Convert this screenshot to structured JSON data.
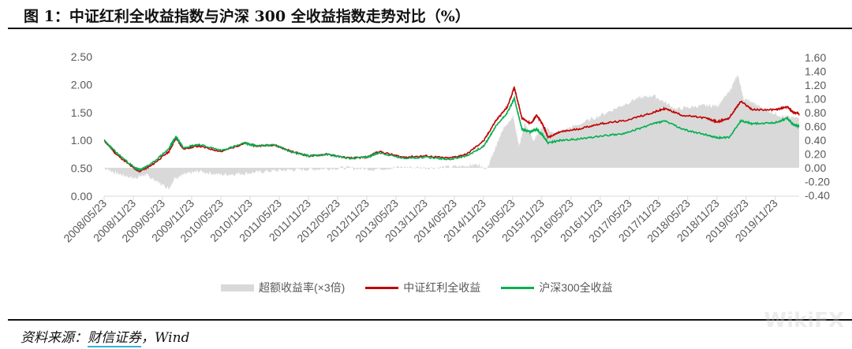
{
  "title": "图 1：中证红利全收益指数与沪深 300 全收益指数走势对比（%）",
  "source": {
    "prefix": "资料来源：",
    "link": "财信证券",
    "suffix": "，Wind"
  },
  "watermark": "WikiFX",
  "chart_data": {
    "type": "line",
    "title": "中证红利全收益指数与沪深 300 全收益指数走势对比（%）",
    "x_ticks": [
      "2008/05/23",
      "2008/11/23",
      "2009/05/23",
      "2009/11/23",
      "2010/05/23",
      "2010/11/23",
      "2011/05/23",
      "2011/11/23",
      "2012/05/23",
      "2012/11/23",
      "2013/05/23",
      "2013/11/23",
      "2014/05/23",
      "2014/11/23",
      "2015/05/23",
      "2015/11/23",
      "2016/05/23",
      "2016/11/23",
      "2017/05/23",
      "2017/11/23",
      "2018/05/23",
      "2018/11/23",
      "2019/05/23",
      "2019/11/23"
    ],
    "xlim": [
      2008.39,
      2020.3
    ],
    "y_left": {
      "ticks": [
        "0.00",
        "0.50",
        "1.00",
        "1.50",
        "2.00",
        "2.50"
      ],
      "range": [
        0,
        2.5
      ]
    },
    "y_right": {
      "ticks": [
        "-0.40",
        "-0.20",
        "0.00",
        "0.20",
        "0.40",
        "0.60",
        "0.80",
        "1.00",
        "1.20",
        "1.40",
        "1.60"
      ],
      "range": [
        -0.4,
        1.6
      ]
    },
    "legend_position": "bottom",
    "colors": {
      "excess": "#d9d9d9",
      "dividend": "#c00000",
      "csi300": "#00b050"
    },
    "series": [
      {
        "name": "超额收益率(×3倍)",
        "type": "area",
        "axis": "right",
        "x": [
          2008.39,
          2008.6,
          2008.9,
          2009.1,
          2009.3,
          2009.5,
          2009.6,
          2009.75,
          2010.0,
          2010.4,
          2010.8,
          2011.2,
          2011.6,
          2012.0,
          2012.5,
          2013.0,
          2013.5,
          2014.0,
          2014.5,
          2014.8,
          2014.95,
          2015.1,
          2015.25,
          2015.4,
          2015.5,
          2015.6,
          2015.75,
          2015.9,
          2016.1,
          2016.5,
          2017.0,
          2017.5,
          2017.8,
          2018.2,
          2018.6,
          2018.9,
          2019.1,
          2019.25,
          2019.35,
          2019.5,
          2019.7,
          2020.0,
          2020.3
        ],
        "y": [
          0.0,
          -0.08,
          -0.15,
          -0.1,
          -0.2,
          -0.3,
          -0.15,
          -0.1,
          -0.05,
          -0.1,
          -0.08,
          -0.05,
          -0.03,
          -0.02,
          0.0,
          -0.02,
          0.01,
          0.0,
          0.02,
          0.05,
          -0.02,
          0.3,
          0.6,
          0.75,
          0.3,
          0.65,
          0.4,
          0.6,
          0.5,
          0.62,
          0.8,
          1.0,
          1.05,
          0.85,
          0.9,
          0.9,
          1.1,
          1.35,
          1.0,
          0.95,
          0.85,
          0.75,
          0.72
        ]
      },
      {
        "name": "中证红利全收益",
        "type": "line",
        "axis": "left",
        "x": [
          2008.39,
          2008.6,
          2008.9,
          2009.0,
          2009.2,
          2009.5,
          2009.62,
          2009.75,
          2010.0,
          2010.4,
          2010.8,
          2011.0,
          2011.3,
          2011.6,
          2011.9,
          2012.2,
          2012.6,
          2012.9,
          2013.1,
          2013.5,
          2013.9,
          2014.3,
          2014.6,
          2014.9,
          2015.1,
          2015.3,
          2015.42,
          2015.55,
          2015.7,
          2015.8,
          2015.9,
          2016.0,
          2016.2,
          2016.5,
          2016.9,
          2017.3,
          2017.8,
          2018.0,
          2018.3,
          2018.7,
          2018.9,
          2019.1,
          2019.3,
          2019.5,
          2019.9,
          2020.1,
          2020.2,
          2020.3
        ],
        "y": [
          1.0,
          0.75,
          0.5,
          0.45,
          0.55,
          0.8,
          1.04,
          0.85,
          0.9,
          0.8,
          0.95,
          0.9,
          0.92,
          0.8,
          0.72,
          0.75,
          0.68,
          0.7,
          0.8,
          0.7,
          0.72,
          0.68,
          0.75,
          1.0,
          1.35,
          1.6,
          1.95,
          1.4,
          1.3,
          1.45,
          1.3,
          1.05,
          1.15,
          1.2,
          1.3,
          1.35,
          1.5,
          1.57,
          1.45,
          1.4,
          1.33,
          1.4,
          1.7,
          1.55,
          1.55,
          1.6,
          1.5,
          1.48
        ]
      },
      {
        "name": "沪深300全收益",
        "type": "line",
        "axis": "left",
        "x": [
          2008.39,
          2008.6,
          2008.9,
          2009.0,
          2009.2,
          2009.5,
          2009.62,
          2009.75,
          2010.0,
          2010.4,
          2010.8,
          2011.0,
          2011.3,
          2011.6,
          2011.9,
          2012.2,
          2012.6,
          2012.9,
          2013.1,
          2013.5,
          2013.9,
          2014.3,
          2014.6,
          2014.9,
          2015.1,
          2015.3,
          2015.42,
          2015.55,
          2015.7,
          2015.8,
          2015.9,
          2016.0,
          2016.2,
          2016.5,
          2016.9,
          2017.3,
          2017.8,
          2018.0,
          2018.3,
          2018.7,
          2018.9,
          2019.1,
          2019.3,
          2019.5,
          2019.9,
          2020.1,
          2020.2,
          2020.3
        ],
        "y": [
          1.0,
          0.78,
          0.52,
          0.47,
          0.58,
          0.85,
          1.07,
          0.87,
          0.93,
          0.82,
          0.95,
          0.9,
          0.92,
          0.8,
          0.72,
          0.75,
          0.68,
          0.7,
          0.78,
          0.68,
          0.7,
          0.66,
          0.72,
          0.9,
          1.25,
          1.5,
          1.75,
          1.2,
          1.15,
          1.2,
          1.1,
          0.95,
          1.0,
          1.02,
          1.08,
          1.12,
          1.3,
          1.35,
          1.2,
          1.1,
          1.05,
          1.05,
          1.35,
          1.3,
          1.32,
          1.4,
          1.28,
          1.25
        ]
      }
    ]
  },
  "legend": [
    "超额收益率(×3倍)",
    "中证红利全收益",
    "沪深300全收益"
  ]
}
